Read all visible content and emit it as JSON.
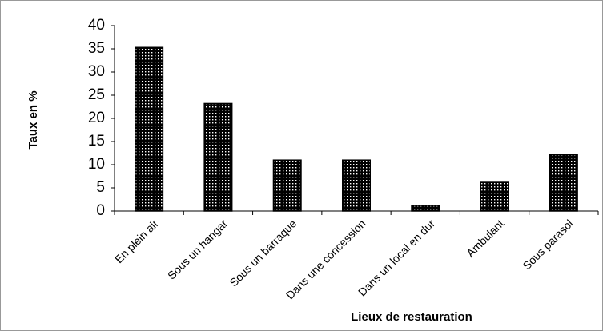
{
  "chart_data": {
    "type": "bar",
    "y_label": "Taux en %",
    "x_label": "Lieux de restauration",
    "categories": [
      "En plein air",
      "Sous un hangar",
      "Sous un barraque",
      "Dans une concession",
      "Dans un local en dur",
      "Ambulant",
      "Sous parasol"
    ],
    "values": [
      35.3,
      23.2,
      11,
      11,
      1.2,
      6.2,
      12.2
    ],
    "color": "#000000",
    "ylim": [
      0,
      40
    ],
    "yticks": [
      0,
      5,
      10,
      15,
      20,
      25,
      30,
      35,
      40
    ],
    "grid": false
  }
}
